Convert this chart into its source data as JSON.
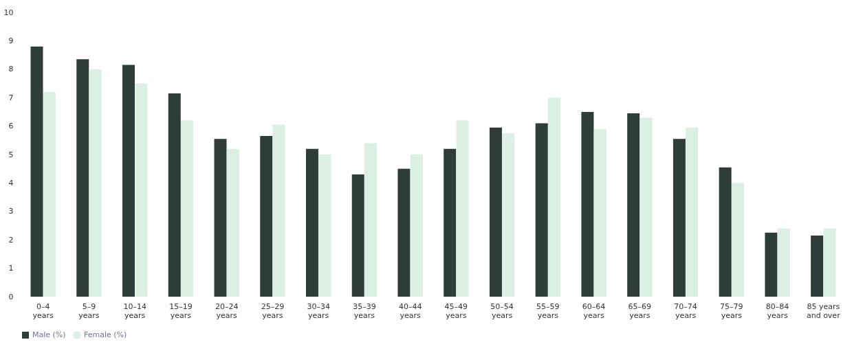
{
  "chart_data": {
    "type": "bar",
    "categories": [
      "0–4 years",
      "5–9 years",
      "10–14 years",
      "15–19 years",
      "20–24 years",
      "25–29 years",
      "30–34 years",
      "35–39 years",
      "40–44 years",
      "45–49 years",
      "50–54 years",
      "55–59 years",
      "60–64 years",
      "65–69 years",
      "70–74 years",
      "75–79 years",
      "80–84 years",
      "85 years and over"
    ],
    "series": [
      {
        "name": "Male (%)",
        "color": "#2f3d3a",
        "values": [
          8.8,
          8.35,
          8.15,
          7.15,
          5.55,
          5.65,
          5.2,
          4.3,
          4.5,
          5.2,
          5.95,
          6.1,
          6.5,
          6.45,
          5.55,
          4.55,
          2.25,
          2.15
        ]
      },
      {
        "name": "Female (%)",
        "color": "#dcefe4",
        "values": [
          7.2,
          8.0,
          7.5,
          6.2,
          5.2,
          6.05,
          5.0,
          5.4,
          5.0,
          6.2,
          5.75,
          7.0,
          5.9,
          6.3,
          5.95,
          4.0,
          2.4,
          2.4
        ]
      }
    ],
    "ylim": [
      0,
      10
    ],
    "yticks": [
      0,
      1,
      2,
      3,
      4,
      5,
      6,
      7,
      8,
      9,
      10
    ],
    "grid": false,
    "legend": "bottom"
  }
}
